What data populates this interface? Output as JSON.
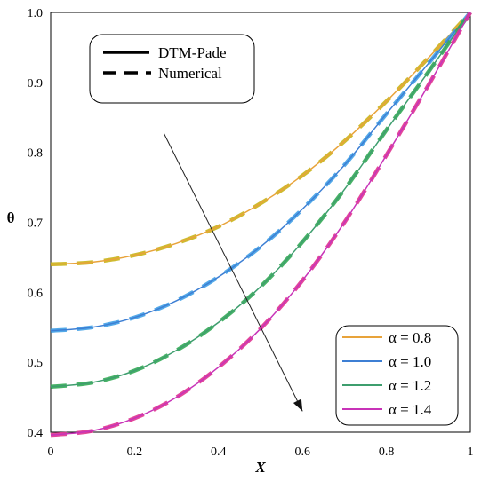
{
  "chart_data": {
    "type": "line",
    "xlabel": "X",
    "ylabel": "θ",
    "xlim": [
      0,
      1
    ],
    "ylim": [
      0.4,
      1.0
    ],
    "x_ticks": [
      "0",
      "0.2",
      "0.4",
      "0.6",
      "0.8",
      "1"
    ],
    "y_ticks": [
      "0.4",
      "0.5",
      "0.6",
      "0.7",
      "0.8",
      "0.9",
      "1.0"
    ],
    "grid": false,
    "x": [
      0,
      0.1,
      0.2,
      0.3,
      0.4,
      0.5,
      0.6,
      0.7,
      0.8,
      0.9,
      1.0
    ],
    "series": [
      {
        "name": "α = 0.8",
        "color": "#E8A33A",
        "values": [
          0.64,
          0.643,
          0.653,
          0.67,
          0.694,
          0.727,
          0.767,
          0.816,
          0.873,
          0.935,
          1.0
        ]
      },
      {
        "name": "α = 1.0",
        "color": "#3D7FD4",
        "values": [
          0.545,
          0.55,
          0.564,
          0.588,
          0.622,
          0.665,
          0.719,
          0.782,
          0.855,
          0.927,
          1.0
        ]
      },
      {
        "name": "α = 1.2",
        "color": "#3E9E6E",
        "values": [
          0.465,
          0.471,
          0.488,
          0.517,
          0.557,
          0.608,
          0.672,
          0.747,
          0.832,
          0.915,
          1.0
        ]
      },
      {
        "name": "α = 1.4",
        "color": "#C833B8",
        "values": [
          0.396,
          0.402,
          0.42,
          0.45,
          0.493,
          0.548,
          0.617,
          0.7,
          0.796,
          0.896,
          1.0
        ]
      }
    ],
    "numerical_dash_colors": [
      "#C9B418",
      "#40A0E6",
      "#33AA55",
      "#E0338F"
    ],
    "style_legend": {
      "placement": "top-left",
      "entries": [
        {
          "label": "DTM-Pade",
          "style": "solid"
        },
        {
          "label": "Numerical",
          "style": "dashed"
        }
      ]
    },
    "series_legend_placement": "bottom-right",
    "arrow_annotation": {
      "from": [
        0.27,
        0.827
      ],
      "to": [
        0.6,
        0.43
      ],
      "meaning": "increasing α"
    }
  }
}
